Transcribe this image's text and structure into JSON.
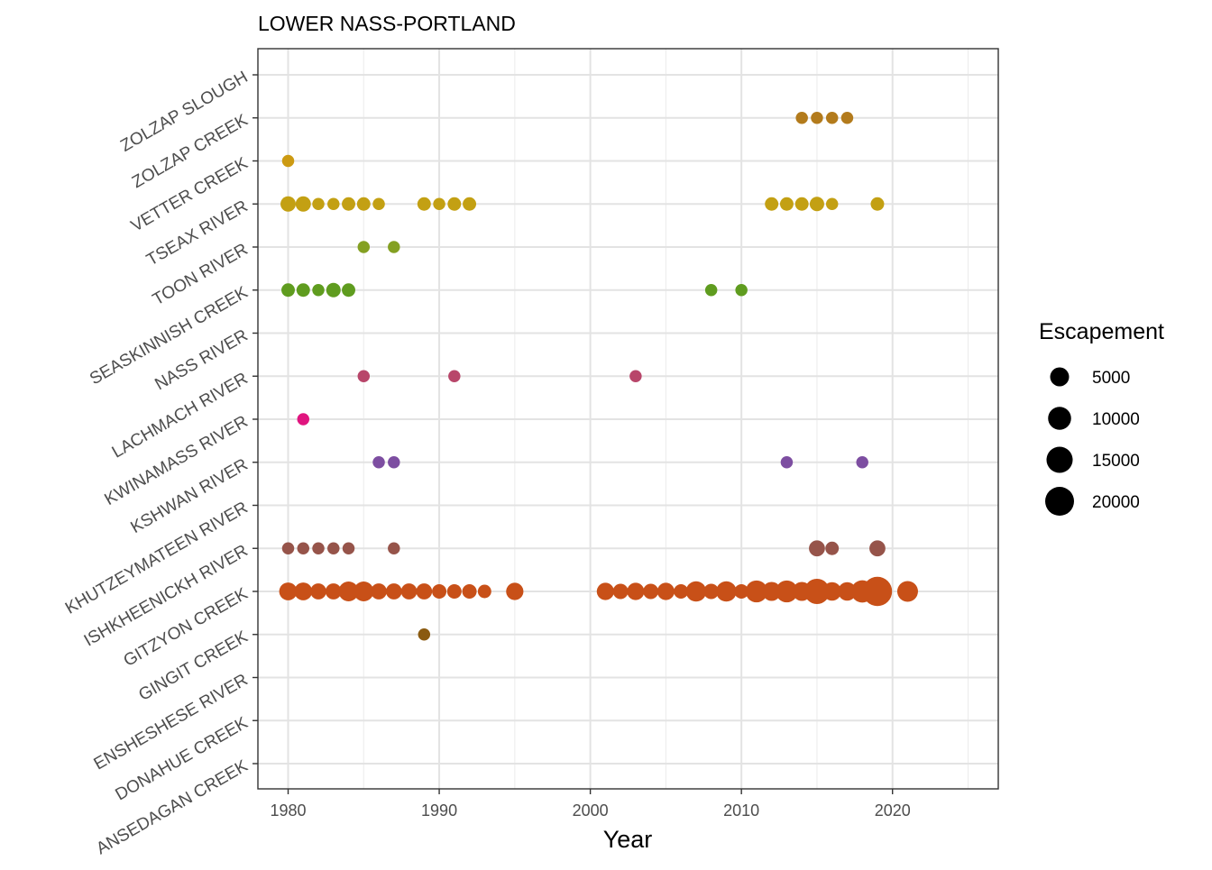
{
  "chart_data": {
    "type": "scatter",
    "title": "LOWER NASS-PORTLAND",
    "xlabel": "Year",
    "ylabel": "",
    "xlim": [
      1978,
      2027
    ],
    "x_ticks": [
      1980,
      1990,
      2000,
      2010,
      2020
    ],
    "x_tick_labels": [
      "1980",
      "1990",
      "2000",
      "2010",
      "2020"
    ],
    "y_categories": [
      "ANSEDAGAN CREEK",
      "DONAHUE CREEK",
      "ENSHESHESE RIVER",
      "GINGIT CREEK",
      "GITZYON CREEK",
      "ISHKHEENICKH RIVER",
      "KHUTZEYMATEEN RIVER",
      "KSHWAN RIVER",
      "KWINAMASS RIVER",
      "LACHMACH RIVER",
      "NASS RIVER",
      "SEASKINNISH CREEK",
      "TOON RIVER",
      "TSEAX RIVER",
      "VETTER CREEK",
      "ZOLZAP CREEK",
      "ZOLZAP SLOUGH"
    ],
    "grid": true,
    "legend": {
      "title": "Escapement",
      "placement": "right",
      "sizes": [
        5000,
        10000,
        15000,
        20000
      ],
      "labels": [
        "5000",
        "10000",
        "15000",
        "20000"
      ]
    },
    "series": [
      {
        "name": "ZOLZAP CREEK",
        "color": "#b37b1c",
        "x": [
          2014,
          2015,
          2016,
          2017
        ],
        "size": [
          500,
          500,
          500,
          500
        ]
      },
      {
        "name": "VETTER CREEK",
        "color": "#cc9a12",
        "x": [
          1980
        ],
        "size": [
          500
        ]
      },
      {
        "name": "TSEAX RIVER",
        "color": "#c3a013",
        "x": [
          1980,
          1981,
          1982,
          1983,
          1984,
          1985,
          1986,
          1989,
          1990,
          1991,
          1992,
          2012,
          2013,
          2014,
          2015,
          2016,
          2019
        ],
        "size": [
          2000,
          2000,
          500,
          500,
          1000,
          1000,
          500,
          1000,
          500,
          1000,
          1000,
          1000,
          1000,
          1000,
          1500,
          500,
          1000
        ]
      },
      {
        "name": "TOON RIVER",
        "color": "#84a022",
        "x": [
          1985,
          1987
        ],
        "size": [
          500,
          500
        ]
      },
      {
        "name": "SEASKINNISH CREEK",
        "color": "#5f9c1f",
        "x": [
          1980,
          1981,
          1982,
          1983,
          1984,
          2008,
          2010
        ],
        "size": [
          1000,
          1000,
          500,
          1500,
          1000,
          500,
          500
        ]
      },
      {
        "name": "LACHMACH RIVER",
        "color": "#b8466a",
        "x": [
          1985,
          1991,
          2003
        ],
        "size": [
          500,
          500,
          500
        ]
      },
      {
        "name": "KWINAMASS RIVER",
        "color": "#e0157f",
        "x": [
          1981
        ],
        "size": [
          500
        ]
      },
      {
        "name": "KSHWAN RIVER",
        "color": "#7d4ea1",
        "x": [
          1986,
          1987,
          2013,
          2018
        ],
        "size": [
          500,
          500,
          500,
          500
        ]
      },
      {
        "name": "ISHKHEENICKH RIVER",
        "color": "#96544a",
        "x": [
          1980,
          1981,
          1982,
          1983,
          1984,
          1987,
          2015,
          2016,
          2019
        ],
        "size": [
          500,
          500,
          500,
          500,
          500,
          500,
          2500,
          1000,
          2500
        ]
      },
      {
        "name": "GITZYON CREEK",
        "color": "#c85018",
        "x": [
          1980,
          1981,
          1982,
          1983,
          1984,
          1985,
          1986,
          1987,
          1988,
          1989,
          1990,
          1991,
          1992,
          1993,
          1995,
          2001,
          2002,
          2003,
          2004,
          2005,
          2006,
          2007,
          2008,
          2009,
          2010,
          2011,
          2012,
          2013,
          2014,
          2015,
          2016,
          2017,
          2018,
          2019,
          2021
        ],
        "size": [
          4000,
          4000,
          2500,
          2500,
          6000,
          6000,
          2500,
          2500,
          2500,
          2500,
          1500,
          1500,
          1500,
          1000,
          3500,
          3500,
          2000,
          3500,
          2000,
          3500,
          1500,
          6500,
          2000,
          6500,
          1500,
          8500,
          5000,
          8500,
          5000,
          13500,
          4500,
          4500,
          9000,
          21000,
          7000
        ]
      },
      {
        "name": "GINGIT CREEK",
        "color": "#8a5a10",
        "x": [
          1989
        ],
        "size": [
          500
        ]
      }
    ]
  }
}
